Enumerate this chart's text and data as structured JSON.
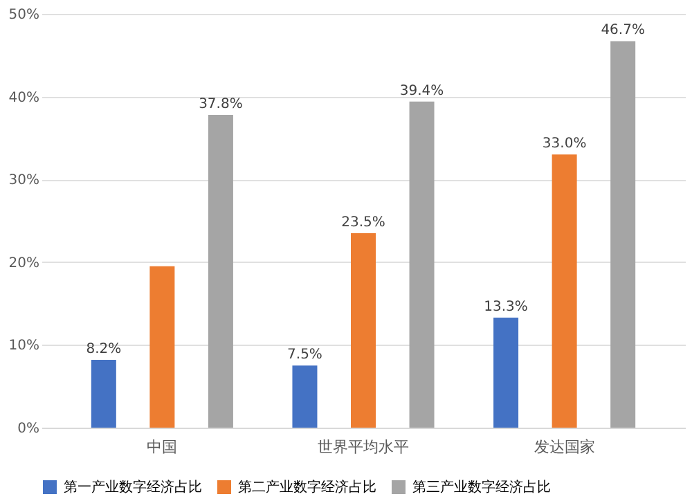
{
  "chart_data": {
    "type": "bar",
    "categories": [
      "中国",
      "世界平均水平",
      "发达国家"
    ],
    "series": [
      {
        "name": "第一产业数字经济占比",
        "color": "#4472c4",
        "values": [
          8.2,
          7.5,
          13.3
        ],
        "value_labels": [
          "8.2%",
          "7.5%",
          "13.3%"
        ]
      },
      {
        "name": "第二产业数字经济占比",
        "color": "#ed7d31",
        "values": [
          19.5,
          23.5,
          33.0
        ],
        "value_labels": [
          null,
          "23.5%",
          "33.0%"
        ]
      },
      {
        "name": "第三产业数字经济占比",
        "color": "#a5a5a5",
        "values": [
          37.8,
          39.4,
          46.7
        ],
        "value_labels": [
          "37.8%",
          "39.4%",
          "46.7%"
        ]
      }
    ],
    "ylim": [
      0,
      50
    ],
    "yticks": [
      {
        "value": 0,
        "label": "0%"
      },
      {
        "value": 10,
        "label": "10%"
      },
      {
        "value": 20,
        "label": "20%"
      },
      {
        "value": 30,
        "label": "30%"
      },
      {
        "value": 40,
        "label": "40%"
      },
      {
        "value": 50,
        "label": "50%"
      }
    ],
    "grid": "y",
    "legend": "bottom"
  }
}
